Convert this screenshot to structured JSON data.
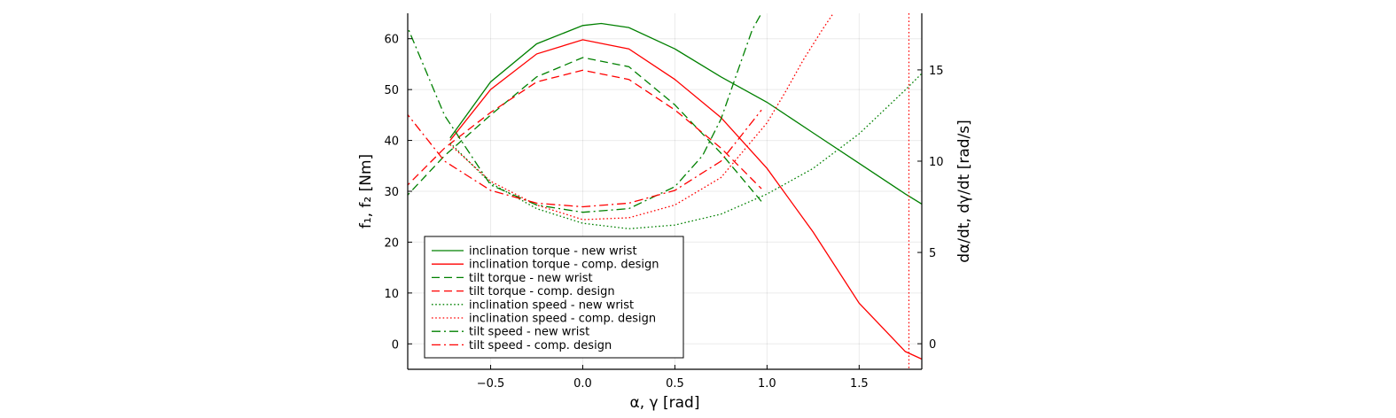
{
  "chart_data": {
    "type": "line",
    "xlabel": "α, γ [rad]",
    "ylabel_left": "f₁, f₂ [Nm]",
    "ylabel_right": "dα/dt, dγ/dt [rad/s]",
    "xlim": [
      -0.95,
      1.84
    ],
    "ylim_left": [
      -5,
      65
    ],
    "ylim_right": [
      -1.4,
      18.1
    ],
    "x_ticks": [
      -0.5,
      0.0,
      0.5,
      1.0,
      1.5
    ],
    "x_tick_labels": [
      "−0.5",
      "0.0",
      "0.5",
      "1.0",
      "1.5"
    ],
    "y_left_ticks": [
      0,
      10,
      20,
      30,
      40,
      50,
      60
    ],
    "y_left_tick_labels": [
      "0",
      "10",
      "20",
      "30",
      "40",
      "50",
      "60"
    ],
    "y_right_ticks": [
      0,
      5,
      10,
      15
    ],
    "y_right_tick_labels": [
      "0",
      "5",
      "10",
      "15"
    ],
    "grid": true,
    "legend_position": "bottom-left",
    "colors": {
      "new_wrist": "#008000",
      "comp_design": "#ff0000"
    },
    "vertical_line": {
      "x": 1.77,
      "color": "#ff0000",
      "style": "dotted",
      "axis": "right"
    },
    "series": [
      {
        "name": "inclination torque - new wrist",
        "axis": "left",
        "color": "#008000",
        "style": "solid",
        "x": [
          -0.72,
          -0.5,
          -0.25,
          0.0,
          0.1,
          0.25,
          0.5,
          0.75,
          1.0,
          1.25,
          1.5,
          1.75,
          1.84
        ],
        "y": [
          40.5,
          51.5,
          59.0,
          62.6,
          63.0,
          62.2,
          58.0,
          52.5,
          47.5,
          41.5,
          35.5,
          29.5,
          27.5
        ]
      },
      {
        "name": "inclination torque - comp. design",
        "axis": "left",
        "color": "#ff0000",
        "style": "solid",
        "x": [
          -0.72,
          -0.5,
          -0.25,
          0.0,
          0.25,
          0.5,
          0.75,
          1.0,
          1.25,
          1.5,
          1.75,
          1.84
        ],
        "y": [
          40.0,
          50.0,
          57.0,
          59.8,
          58.0,
          52.0,
          44.5,
          34.5,
          22.0,
          8.0,
          -1.5,
          -3.0
        ]
      },
      {
        "name": "tilt torque - new wrist",
        "axis": "left",
        "color": "#008000",
        "style": "dashed",
        "x": [
          -0.97,
          -0.75,
          -0.5,
          -0.25,
          0.0,
          0.25,
          0.5,
          0.75,
          0.97
        ],
        "y": [
          28.5,
          37.0,
          45.0,
          52.5,
          56.3,
          54.5,
          47.0,
          37.5,
          28.0
        ]
      },
      {
        "name": "tilt torque - comp. design",
        "axis": "left",
        "color": "#ff0000",
        "style": "dashed",
        "x": [
          -0.97,
          -0.75,
          -0.5,
          -0.25,
          0.0,
          0.25,
          0.5,
          0.75,
          0.97
        ],
        "y": [
          30.5,
          38.5,
          45.5,
          51.5,
          53.8,
          52.0,
          46.0,
          38.5,
          30.5
        ]
      },
      {
        "name": "inclination speed - new wrist",
        "axis": "right",
        "color": "#008000",
        "style": "dotted",
        "x": [
          -0.72,
          -0.5,
          -0.25,
          0.0,
          0.25,
          0.5,
          0.75,
          1.0,
          1.25,
          1.5,
          1.75,
          1.84
        ],
        "y": [
          11.0,
          8.8,
          7.4,
          6.6,
          6.3,
          6.5,
          7.1,
          8.2,
          9.6,
          11.5,
          13.9,
          14.8
        ]
      },
      {
        "name": "inclination speed - comp. design",
        "axis": "right",
        "color": "#ff0000",
        "style": "dotted",
        "x": [
          -0.72,
          -0.5,
          -0.25,
          0.0,
          0.25,
          0.5,
          0.75,
          1.0,
          1.1,
          1.2,
          1.3,
          1.36
        ],
        "y": [
          10.9,
          8.9,
          7.6,
          6.8,
          6.9,
          7.6,
          9.1,
          12.1,
          13.8,
          15.6,
          17.2,
          18.1
        ]
      },
      {
        "name": "tilt speed - new wrist",
        "axis": "right",
        "color": "#008000",
        "style": "dashdot",
        "x": [
          -0.97,
          -0.75,
          -0.5,
          -0.25,
          0.0,
          0.25,
          0.5,
          0.65,
          0.75,
          0.85,
          0.92,
          0.97
        ],
        "y": [
          17.8,
          12.5,
          8.7,
          7.6,
          7.2,
          7.4,
          8.6,
          10.3,
          12.3,
          15.2,
          17.2,
          18.1
        ]
      },
      {
        "name": "tilt speed - comp. design",
        "axis": "right",
        "color": "#ff0000",
        "style": "dashdot",
        "x": [
          -0.97,
          -0.75,
          -0.5,
          -0.25,
          0.0,
          0.25,
          0.5,
          0.75,
          0.97
        ],
        "y": [
          12.8,
          10.0,
          8.4,
          7.7,
          7.5,
          7.7,
          8.4,
          10.0,
          12.8
        ]
      }
    ]
  }
}
